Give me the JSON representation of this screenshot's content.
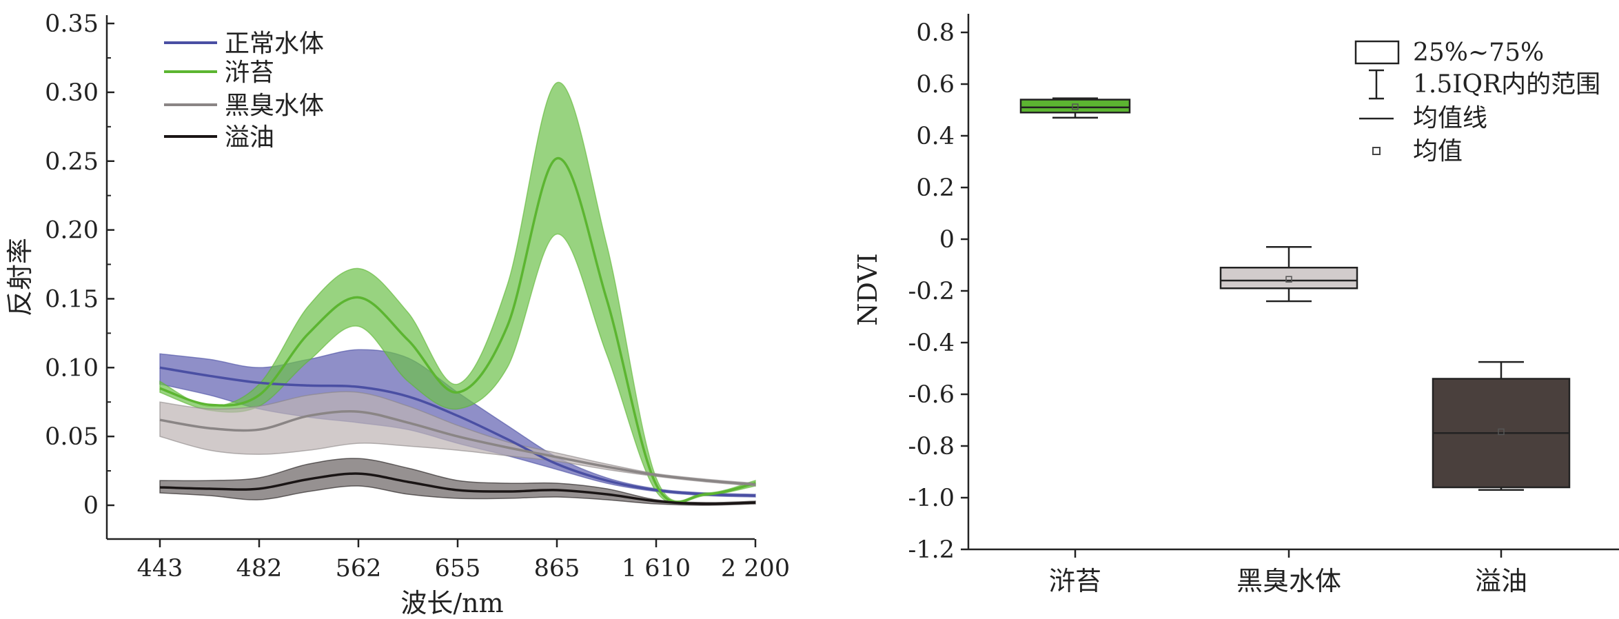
{
  "chart_data": [
    {
      "type": "line",
      "title": "",
      "xlabel": "波长/nm",
      "ylabel": "反射率",
      "categories": [
        "443",
        "482",
        "562",
        "655",
        "865",
        "1 610",
        "2 200"
      ],
      "y_ticks": [
        "0",
        "0.05",
        "0.10",
        "0.15",
        "0.20",
        "0.25",
        "0.30",
        "0.35"
      ],
      "ylim": [
        -0.025,
        0.35
      ],
      "legend_position": "top-left",
      "series": [
        {
          "name": "正常水体",
          "color": "#4a4fa3",
          "band_color": "#6f6fb8",
          "x": [
            0,
            0.5,
            1,
            1.5,
            2,
            2.5,
            3,
            3.5,
            4,
            4.5,
            5,
            5.5,
            6
          ],
          "mean": [
            0.1,
            0.094,
            0.089,
            0.087,
            0.086,
            0.079,
            0.065,
            0.048,
            0.03,
            0.018,
            0.011,
            0.008,
            0.007
          ],
          "upper": [
            0.11,
            0.106,
            0.1,
            0.106,
            0.113,
            0.107,
            0.082,
            0.058,
            0.035,
            0.02,
            0.012,
            0.009,
            0.008
          ],
          "lower": [
            0.088,
            0.08,
            0.07,
            0.064,
            0.06,
            0.055,
            0.045,
            0.036,
            0.026,
            0.016,
            0.01,
            0.007,
            0.006
          ]
        },
        {
          "name": "浒苔",
          "color": "#5cb531",
          "band_color": "#6cc04a",
          "x": [
            0,
            0.5,
            1,
            1.5,
            2,
            2.5,
            3,
            3.5,
            4,
            4.5,
            5,
            5.5,
            6
          ],
          "mean": [
            0.085,
            0.073,
            0.08,
            0.125,
            0.151,
            0.12,
            0.082,
            0.13,
            0.252,
            0.15,
            0.015,
            0.008,
            0.016
          ],
          "upper": [
            0.09,
            0.072,
            0.088,
            0.145,
            0.172,
            0.14,
            0.088,
            0.16,
            0.307,
            0.19,
            0.02,
            0.009,
            0.018
          ],
          "lower": [
            0.082,
            0.069,
            0.072,
            0.105,
            0.13,
            0.09,
            0.07,
            0.1,
            0.197,
            0.11,
            0.01,
            0.007,
            0.014
          ]
        },
        {
          "name": "黑臭水体",
          "color": "#8a8585",
          "band_color": "#bdb3b3",
          "x": [
            0,
            0.5,
            1,
            1.5,
            2,
            2.5,
            3,
            3.5,
            4,
            4.5,
            5,
            5.5,
            6
          ],
          "mean": [
            0.062,
            0.056,
            0.055,
            0.065,
            0.068,
            0.06,
            0.05,
            0.042,
            0.035,
            0.028,
            0.022,
            0.018,
            0.015
          ],
          "upper": [
            0.075,
            0.07,
            0.072,
            0.08,
            0.082,
            0.072,
            0.058,
            0.046,
            0.038,
            0.03,
            0.023,
            0.019,
            0.016
          ],
          "lower": [
            0.05,
            0.04,
            0.037,
            0.04,
            0.045,
            0.043,
            0.04,
            0.036,
            0.032,
            0.026,
            0.021,
            0.017,
            0.014
          ]
        },
        {
          "name": "溢油",
          "color": "#1a1515",
          "band_color": "#6a6262",
          "x": [
            0,
            0.5,
            1,
            1.5,
            2,
            2.5,
            3,
            3.5,
            4,
            4.5,
            5,
            5.5,
            6
          ],
          "mean": [
            0.013,
            0.012,
            0.012,
            0.019,
            0.023,
            0.017,
            0.011,
            0.01,
            0.011,
            0.008,
            0.003,
            0.001,
            0.002
          ],
          "upper": [
            0.018,
            0.018,
            0.02,
            0.03,
            0.034,
            0.027,
            0.018,
            0.016,
            0.016,
            0.012,
            0.004,
            0.002,
            0.003
          ],
          "lower": [
            0.009,
            0.007,
            0.004,
            0.01,
            0.014,
            0.008,
            0.005,
            0.005,
            0.006,
            0.004,
            0.001,
            0.0,
            0.001
          ]
        }
      ]
    },
    {
      "type": "box",
      "title": "",
      "xlabel": "",
      "ylabel": "NDVI",
      "categories": [
        "浒苔",
        "黑臭水体",
        "溢油"
      ],
      "y_ticks": [
        "0.8",
        "0.6",
        "0.4",
        "0.2",
        "0",
        "-0.2",
        "-0.4",
        "-0.6",
        "-0.8",
        "-1.0",
        "-1.2"
      ],
      "ylim": [
        -1.2,
        0.8
      ],
      "legend_position": "top-right",
      "legend": {
        "box": "25%~75%",
        "whisker": "1.5IQR内的范围",
        "median": "均值线",
        "mean": "均值"
      },
      "boxes": [
        {
          "name": "浒苔",
          "whisker_low": 0.47,
          "q1": 0.49,
          "median": 0.51,
          "q3": 0.54,
          "whisker_high": 0.545,
          "mean": 0.512,
          "color": "#5cb531"
        },
        {
          "name": "黑臭水体",
          "whisker_low": -0.24,
          "q1": -0.19,
          "median": -0.16,
          "q3": -0.11,
          "whisker_high": -0.03,
          "mean": -0.155,
          "color": "#d2cccc"
        },
        {
          "name": "溢油",
          "whisker_low": -0.97,
          "q1": -0.96,
          "median": -0.75,
          "q3": -0.54,
          "whisker_high": -0.475,
          "mean": -0.745,
          "color": "#4a403d"
        }
      ]
    }
  ]
}
